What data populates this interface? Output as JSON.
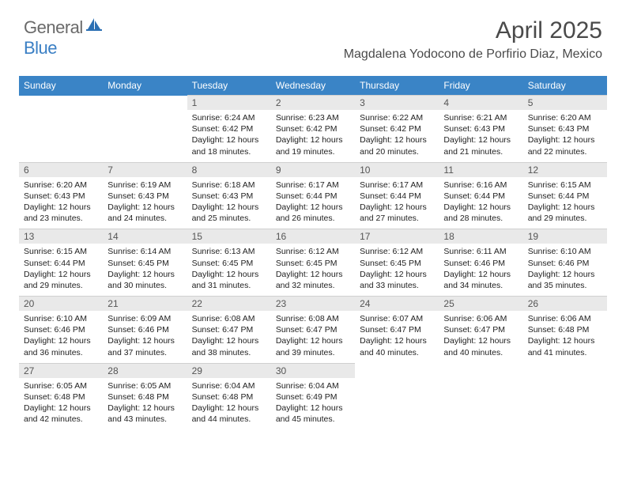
{
  "logo": {
    "text1": "General",
    "text2": "Blue",
    "icon_color": "#2b6fb3",
    "text1_color": "#6a6a6a",
    "text2_color": "#3a7fc4"
  },
  "header": {
    "title": "April 2025",
    "location": "Magdalena Yodocono de Porfirio Diaz, Mexico"
  },
  "colors": {
    "header_bg": "#3a84c6",
    "header_fg": "#ffffff",
    "daynum_bg": "#e9e9e9",
    "text": "#222222"
  },
  "weekdays": [
    "Sunday",
    "Monday",
    "Tuesday",
    "Wednesday",
    "Thursday",
    "Friday",
    "Saturday"
  ],
  "weeks": [
    [
      null,
      null,
      {
        "n": "1",
        "sr": "6:24 AM",
        "ss": "6:42 PM",
        "dl": "12 hours and 18 minutes."
      },
      {
        "n": "2",
        "sr": "6:23 AM",
        "ss": "6:42 PM",
        "dl": "12 hours and 19 minutes."
      },
      {
        "n": "3",
        "sr": "6:22 AM",
        "ss": "6:42 PM",
        "dl": "12 hours and 20 minutes."
      },
      {
        "n": "4",
        "sr": "6:21 AM",
        "ss": "6:43 PM",
        "dl": "12 hours and 21 minutes."
      },
      {
        "n": "5",
        "sr": "6:20 AM",
        "ss": "6:43 PM",
        "dl": "12 hours and 22 minutes."
      }
    ],
    [
      {
        "n": "6",
        "sr": "6:20 AM",
        "ss": "6:43 PM",
        "dl": "12 hours and 23 minutes."
      },
      {
        "n": "7",
        "sr": "6:19 AM",
        "ss": "6:43 PM",
        "dl": "12 hours and 24 minutes."
      },
      {
        "n": "8",
        "sr": "6:18 AM",
        "ss": "6:43 PM",
        "dl": "12 hours and 25 minutes."
      },
      {
        "n": "9",
        "sr": "6:17 AM",
        "ss": "6:44 PM",
        "dl": "12 hours and 26 minutes."
      },
      {
        "n": "10",
        "sr": "6:17 AM",
        "ss": "6:44 PM",
        "dl": "12 hours and 27 minutes."
      },
      {
        "n": "11",
        "sr": "6:16 AM",
        "ss": "6:44 PM",
        "dl": "12 hours and 28 minutes."
      },
      {
        "n": "12",
        "sr": "6:15 AM",
        "ss": "6:44 PM",
        "dl": "12 hours and 29 minutes."
      }
    ],
    [
      {
        "n": "13",
        "sr": "6:15 AM",
        "ss": "6:44 PM",
        "dl": "12 hours and 29 minutes."
      },
      {
        "n": "14",
        "sr": "6:14 AM",
        "ss": "6:45 PM",
        "dl": "12 hours and 30 minutes."
      },
      {
        "n": "15",
        "sr": "6:13 AM",
        "ss": "6:45 PM",
        "dl": "12 hours and 31 minutes."
      },
      {
        "n": "16",
        "sr": "6:12 AM",
        "ss": "6:45 PM",
        "dl": "12 hours and 32 minutes."
      },
      {
        "n": "17",
        "sr": "6:12 AM",
        "ss": "6:45 PM",
        "dl": "12 hours and 33 minutes."
      },
      {
        "n": "18",
        "sr": "6:11 AM",
        "ss": "6:46 PM",
        "dl": "12 hours and 34 minutes."
      },
      {
        "n": "19",
        "sr": "6:10 AM",
        "ss": "6:46 PM",
        "dl": "12 hours and 35 minutes."
      }
    ],
    [
      {
        "n": "20",
        "sr": "6:10 AM",
        "ss": "6:46 PM",
        "dl": "12 hours and 36 minutes."
      },
      {
        "n": "21",
        "sr": "6:09 AM",
        "ss": "6:46 PM",
        "dl": "12 hours and 37 minutes."
      },
      {
        "n": "22",
        "sr": "6:08 AM",
        "ss": "6:47 PM",
        "dl": "12 hours and 38 minutes."
      },
      {
        "n": "23",
        "sr": "6:08 AM",
        "ss": "6:47 PM",
        "dl": "12 hours and 39 minutes."
      },
      {
        "n": "24",
        "sr": "6:07 AM",
        "ss": "6:47 PM",
        "dl": "12 hours and 40 minutes."
      },
      {
        "n": "25",
        "sr": "6:06 AM",
        "ss": "6:47 PM",
        "dl": "12 hours and 40 minutes."
      },
      {
        "n": "26",
        "sr": "6:06 AM",
        "ss": "6:48 PM",
        "dl": "12 hours and 41 minutes."
      }
    ],
    [
      {
        "n": "27",
        "sr": "6:05 AM",
        "ss": "6:48 PM",
        "dl": "12 hours and 42 minutes."
      },
      {
        "n": "28",
        "sr": "6:05 AM",
        "ss": "6:48 PM",
        "dl": "12 hours and 43 minutes."
      },
      {
        "n": "29",
        "sr": "6:04 AM",
        "ss": "6:48 PM",
        "dl": "12 hours and 44 minutes."
      },
      {
        "n": "30",
        "sr": "6:04 AM",
        "ss": "6:49 PM",
        "dl": "12 hours and 45 minutes."
      },
      null,
      null,
      null
    ]
  ],
  "labels": {
    "sunrise": "Sunrise:",
    "sunset": "Sunset:",
    "daylight": "Daylight:"
  }
}
